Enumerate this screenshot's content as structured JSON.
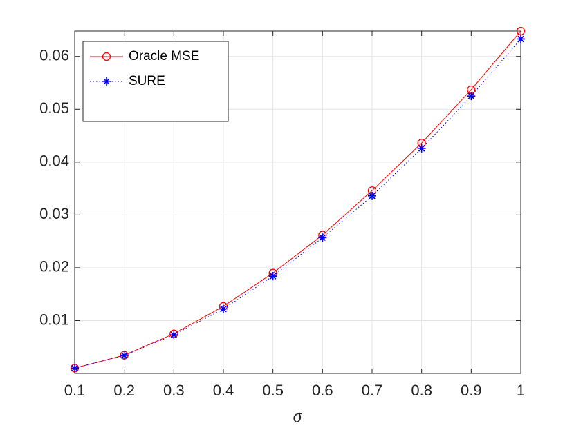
{
  "chart_data": {
    "type": "line",
    "xlabel": "σ",
    "x": [
      0.1,
      0.2,
      0.3,
      0.4,
      0.5,
      0.6,
      0.7,
      0.8,
      0.9,
      1
    ],
    "series": [
      {
        "name": "Oracle MSE",
        "color": "#ff0000",
        "marker": "o",
        "line_style": "solid",
        "values": [
          0.001,
          0.00345,
          0.0075,
          0.0127,
          0.019,
          0.0262,
          0.0346,
          0.0436,
          0.0537,
          0.0648
        ]
      },
      {
        "name": "SURE",
        "color": "#0000ff",
        "marker": "*",
        "line_style": "dotted",
        "values": [
          0.001,
          0.0034,
          0.0073,
          0.0122,
          0.0184,
          0.0257,
          0.0336,
          0.0426,
          0.0525,
          0.0633
        ]
      }
    ],
    "xlim": [
      0.1,
      1
    ],
    "ylim": [
      0,
      0.0648
    ],
    "xticks": [
      0.1,
      0.2,
      0.3,
      0.4,
      0.5,
      0.6,
      0.7,
      0.8,
      0.9,
      1
    ],
    "yticks": [
      0.01,
      0.02,
      0.03,
      0.04,
      0.05,
      0.06
    ],
    "grid": true,
    "legend": "upper-left"
  }
}
